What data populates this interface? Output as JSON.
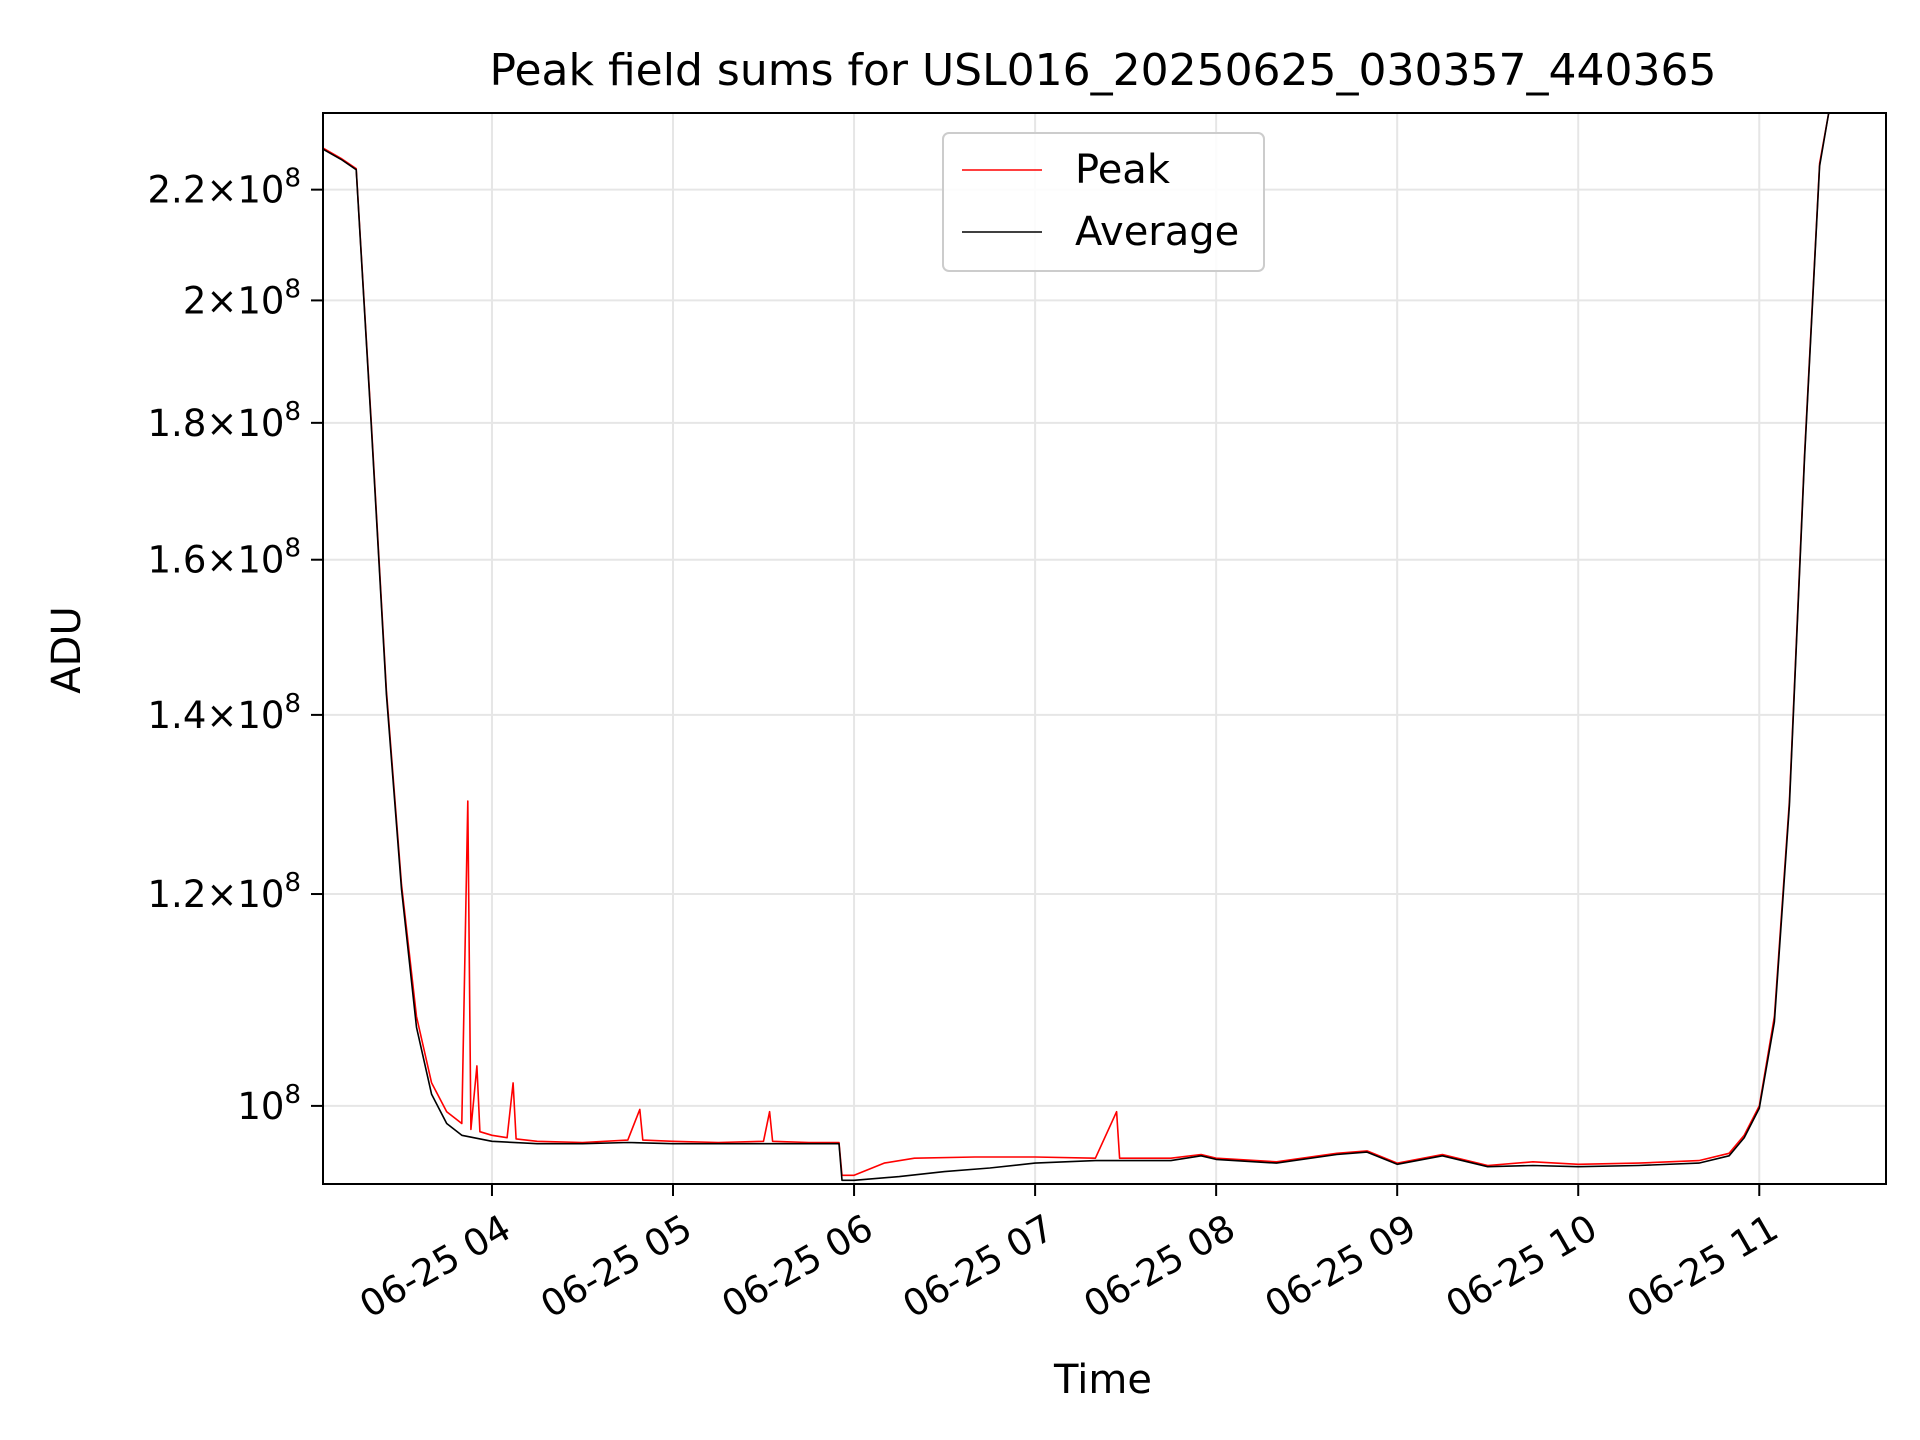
{
  "chart_data": {
    "type": "line",
    "title": "Peak field sums for USL016_20250625_030357_440365",
    "xlabel": "Time",
    "ylabel": "ADU",
    "yscale": "log",
    "grid": true,
    "legend_position": "top-center",
    "x_tick_labels": [
      {
        "t": "2025-06-25 04:00",
        "label": "06-25 04"
      },
      {
        "t": "2025-06-25 05:00",
        "label": "06-25 05"
      },
      {
        "t": "2025-06-25 06:00",
        "label": "06-25 06"
      },
      {
        "t": "2025-06-25 07:00",
        "label": "06-25 07"
      },
      {
        "t": "2025-06-25 08:00",
        "label": "06-25 08"
      },
      {
        "t": "2025-06-25 09:00",
        "label": "06-25 09"
      },
      {
        "t": "2025-06-25 10:00",
        "label": "06-25 10"
      },
      {
        "t": "2025-06-25 11:00",
        "label": "06-25 11"
      }
    ],
    "xlim": [
      "2025-06-25 03:04",
      "2025-06-25 11:42"
    ],
    "y_tick_labels": [
      {
        "v": 100000000,
        "mant": "",
        "exp": "8"
      },
      {
        "v": 120000000,
        "mant": "1.2",
        "exp": "8"
      },
      {
        "v": 140000000,
        "mant": "1.4",
        "exp": "8"
      },
      {
        "v": 160000000,
        "mant": "1.6",
        "exp": "8"
      },
      {
        "v": 180000000,
        "mant": "1.8",
        "exp": "8"
      },
      {
        "v": 200000000,
        "mant": "2",
        "exp": "8"
      },
      {
        "v": 220000000,
        "mant": "2.2",
        "exp": "8"
      }
    ],
    "ylim": [
      93500000,
      235000000
    ],
    "series": [
      {
        "name": "Peak",
        "color": "#ff0000",
        "points": [
          [
            "2025-06-25 03:04",
            228000000
          ],
          [
            "2025-06-25 03:10",
            226000000
          ],
          [
            "2025-06-25 03:15",
            224000000
          ],
          [
            "2025-06-25 03:20",
            180000000
          ],
          [
            "2025-06-25 03:25",
            143000000
          ],
          [
            "2025-06-25 03:30",
            121000000
          ],
          [
            "2025-06-25 03:35",
            108000000
          ],
          [
            "2025-06-25 03:40",
            102000000
          ],
          [
            "2025-06-25 03:45",
            99500000
          ],
          [
            "2025-06-25 03:50",
            98500000
          ],
          [
            "2025-06-25 03:52",
            130000000
          ],
          [
            "2025-06-25 03:53",
            98000000
          ],
          [
            "2025-06-25 03:55",
            103500000
          ],
          [
            "2025-06-25 03:56",
            97800000
          ],
          [
            "2025-06-25 04:00",
            97500000
          ],
          [
            "2025-06-25 04:05",
            97300000
          ],
          [
            "2025-06-25 04:07",
            102000000
          ],
          [
            "2025-06-25 04:08",
            97200000
          ],
          [
            "2025-06-25 04:15",
            97000000
          ],
          [
            "2025-06-25 04:30",
            96900000
          ],
          [
            "2025-06-25 04:45",
            97100000
          ],
          [
            "2025-06-25 04:49",
            99700000
          ],
          [
            "2025-06-25 04:50",
            97100000
          ],
          [
            "2025-06-25 05:00",
            97000000
          ],
          [
            "2025-06-25 05:15",
            96900000
          ],
          [
            "2025-06-25 05:30",
            97000000
          ],
          [
            "2025-06-25 05:32",
            99500000
          ],
          [
            "2025-06-25 05:33",
            97000000
          ],
          [
            "2025-06-25 05:45",
            96900000
          ],
          [
            "2025-06-25 05:55",
            96900000
          ],
          [
            "2025-06-25 05:56",
            94200000
          ],
          [
            "2025-06-25 06:00",
            94200000
          ],
          [
            "2025-06-25 06:10",
            95200000
          ],
          [
            "2025-06-25 06:20",
            95600000
          ],
          [
            "2025-06-25 06:40",
            95700000
          ],
          [
            "2025-06-25 07:00",
            95700000
          ],
          [
            "2025-06-25 07:20",
            95600000
          ],
          [
            "2025-06-25 07:27",
            99500000
          ],
          [
            "2025-06-25 07:28",
            95600000
          ],
          [
            "2025-06-25 07:45",
            95600000
          ],
          [
            "2025-06-25 07:55",
            95900000
          ],
          [
            "2025-06-25 08:00",
            95600000
          ],
          [
            "2025-06-25 08:20",
            95300000
          ],
          [
            "2025-06-25 08:40",
            96000000
          ],
          [
            "2025-06-25 08:50",
            96200000
          ],
          [
            "2025-06-25 09:00",
            95200000
          ],
          [
            "2025-06-25 09:15",
            95900000
          ],
          [
            "2025-06-25 09:30",
            95000000
          ],
          [
            "2025-06-25 09:45",
            95300000
          ],
          [
            "2025-06-25 10:00",
            95100000
          ],
          [
            "2025-06-25 10:20",
            95200000
          ],
          [
            "2025-06-25 10:40",
            95400000
          ],
          [
            "2025-06-25 10:50",
            96000000
          ],
          [
            "2025-06-25 10:55",
            97500000
          ],
          [
            "2025-06-25 11:00",
            100000000
          ],
          [
            "2025-06-25 11:05",
            108000000
          ],
          [
            "2025-06-25 11:10",
            130000000
          ],
          [
            "2025-06-25 11:15",
            175000000
          ],
          [
            "2025-06-25 11:20",
            225000000
          ],
          [
            "2025-06-25 11:23",
            235000000
          ]
        ]
      },
      {
        "name": "Average",
        "color": "#000000",
        "points": [
          [
            "2025-06-25 03:04",
            227800000
          ],
          [
            "2025-06-25 03:10",
            225800000
          ],
          [
            "2025-06-25 03:15",
            223800000
          ],
          [
            "2025-06-25 03:20",
            179500000
          ],
          [
            "2025-06-25 03:25",
            142500000
          ],
          [
            "2025-06-25 03:30",
            120500000
          ],
          [
            "2025-06-25 03:35",
            107000000
          ],
          [
            "2025-06-25 03:40",
            101000000
          ],
          [
            "2025-06-25 03:45",
            98500000
          ],
          [
            "2025-06-25 03:50",
            97500000
          ],
          [
            "2025-06-25 04:00",
            97000000
          ],
          [
            "2025-06-25 04:15",
            96800000
          ],
          [
            "2025-06-25 04:30",
            96800000
          ],
          [
            "2025-06-25 04:45",
            96900000
          ],
          [
            "2025-06-25 05:00",
            96800000
          ],
          [
            "2025-06-25 05:30",
            96800000
          ],
          [
            "2025-06-25 05:55",
            96800000
          ],
          [
            "2025-06-25 05:56",
            93800000
          ],
          [
            "2025-06-25 06:00",
            93800000
          ],
          [
            "2025-06-25 06:15",
            94100000
          ],
          [
            "2025-06-25 06:30",
            94500000
          ],
          [
            "2025-06-25 06:45",
            94800000
          ],
          [
            "2025-06-25 07:00",
            95200000
          ],
          [
            "2025-06-25 07:20",
            95400000
          ],
          [
            "2025-06-25 07:45",
            95400000
          ],
          [
            "2025-06-25 07:55",
            95800000
          ],
          [
            "2025-06-25 08:00",
            95500000
          ],
          [
            "2025-06-25 08:20",
            95200000
          ],
          [
            "2025-06-25 08:40",
            95900000
          ],
          [
            "2025-06-25 08:50",
            96100000
          ],
          [
            "2025-06-25 09:00",
            95100000
          ],
          [
            "2025-06-25 09:15",
            95800000
          ],
          [
            "2025-06-25 09:30",
            94900000
          ],
          [
            "2025-06-25 09:45",
            95000000
          ],
          [
            "2025-06-25 10:00",
            94900000
          ],
          [
            "2025-06-25 10:20",
            95000000
          ],
          [
            "2025-06-25 10:40",
            95200000
          ],
          [
            "2025-06-25 10:50",
            95800000
          ],
          [
            "2025-06-25 10:55",
            97300000
          ],
          [
            "2025-06-25 11:00",
            99800000
          ],
          [
            "2025-06-25 11:05",
            107500000
          ],
          [
            "2025-06-25 11:10",
            129500000
          ],
          [
            "2025-06-25 11:15",
            174500000
          ],
          [
            "2025-06-25 11:20",
            224500000
          ],
          [
            "2025-06-25 11:23",
            235000000
          ]
        ]
      }
    ]
  }
}
